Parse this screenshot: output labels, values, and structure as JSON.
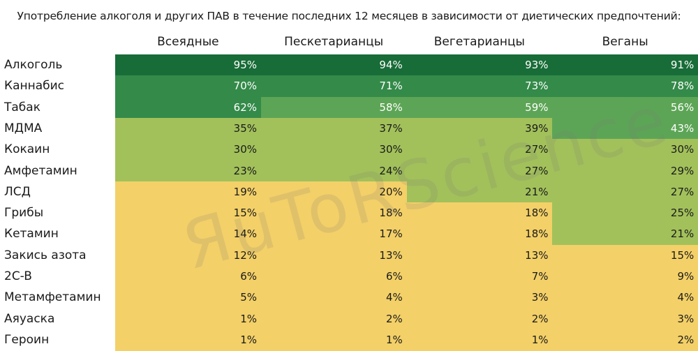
{
  "chart_data": {
    "type": "table",
    "title": "Употребление алкоголя и других ПАВ в течение последних 12 месяцев в зависимости от диетических предпочтений:",
    "columns": [
      "Всеядные",
      "Пескетарианцы",
      "Вегетарианцы",
      "Веганы"
    ],
    "rows": [
      {
        "label": "Алкоголь",
        "values": [
          "95%",
          "94%",
          "93%",
          "91%"
        ],
        "colors": [
          "#186c37",
          "#186c37",
          "#186c37",
          "#186c37"
        ]
      },
      {
        "label": "Каннабис",
        "values": [
          "70%",
          "71%",
          "73%",
          "78%"
        ],
        "colors": [
          "#348a49",
          "#348a49",
          "#348a49",
          "#348a49"
        ]
      },
      {
        "label": "Табак",
        "values": [
          "62%",
          "58%",
          "59%",
          "56%"
        ],
        "colors": [
          "#348a49",
          "#5da556",
          "#5da556",
          "#5da556"
        ]
      },
      {
        "label": "МДМА",
        "values": [
          "35%",
          "37%",
          "39%",
          "43%"
        ],
        "colors": [
          "#a2c15b",
          "#a2c15b",
          "#a2c15b",
          "#5da556"
        ]
      },
      {
        "label": "Кокаин",
        "values": [
          "30%",
          "30%",
          "27%",
          "30%"
        ],
        "colors": [
          "#a2c15b",
          "#a2c15b",
          "#a2c15b",
          "#a2c15b"
        ]
      },
      {
        "label": "Амфетамин",
        "values": [
          "23%",
          "24%",
          "27%",
          "29%"
        ],
        "colors": [
          "#a2c15b",
          "#a2c15b",
          "#a2c15b",
          "#a2c15b"
        ]
      },
      {
        "label": "ЛСД",
        "values": [
          "19%",
          "20%",
          "21%",
          "27%"
        ],
        "colors": [
          "#f3d068",
          "#f3d068",
          "#a2c15b",
          "#a2c15b"
        ]
      },
      {
        "label": "Грибы",
        "values": [
          "15%",
          "18%",
          "18%",
          "25%"
        ],
        "colors": [
          "#f3d068",
          "#f3d068",
          "#f3d068",
          "#a2c15b"
        ]
      },
      {
        "label": "Кетамин",
        "values": [
          "14%",
          "17%",
          "18%",
          "21%"
        ],
        "colors": [
          "#f3d068",
          "#f3d068",
          "#f3d068",
          "#a2c15b"
        ]
      },
      {
        "label": "Закись азота",
        "values": [
          "12%",
          "13%",
          "13%",
          "15%"
        ],
        "colors": [
          "#f3d068",
          "#f3d068",
          "#f3d068",
          "#f3d068"
        ]
      },
      {
        "label": "2C-B",
        "values": [
          "6%",
          "6%",
          "7%",
          "9%"
        ],
        "colors": [
          "#f3d068",
          "#f3d068",
          "#f3d068",
          "#f3d068"
        ]
      },
      {
        "label": "Метамфетамин",
        "values": [
          "5%",
          "4%",
          "3%",
          "4%"
        ],
        "colors": [
          "#f3d068",
          "#f3d068",
          "#f3d068",
          "#f3d068"
        ]
      },
      {
        "label": "Аяуаска",
        "values": [
          "1%",
          "2%",
          "2%",
          "3%"
        ],
        "colors": [
          "#f3d068",
          "#f3d068",
          "#f3d068",
          "#f3d068"
        ]
      },
      {
        "label": "Героин",
        "values": [
          "1%",
          "1%",
          "1%",
          "2%"
        ],
        "colors": [
          "#f3d068",
          "#f3d068",
          "#f3d068",
          "#f3d068"
        ]
      }
    ],
    "text_colors": {
      "dark_fill": "#ffffff",
      "light_fill": "#1a1a1a"
    }
  },
  "watermark": "ЯuToRScience"
}
